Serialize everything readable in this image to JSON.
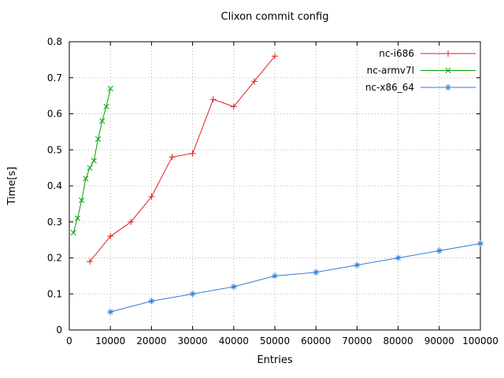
{
  "chart_data": {
    "type": "line",
    "title": "Clixon commit config",
    "xlabel": "Entries",
    "ylabel": "Time[s]",
    "xlim": [
      0,
      100000
    ],
    "ylim": [
      0,
      0.8
    ],
    "xticks": [
      0,
      10000,
      20000,
      30000,
      40000,
      50000,
      60000,
      70000,
      80000,
      90000,
      100000
    ],
    "yticks": [
      0,
      0.1,
      0.2,
      0.3,
      0.4,
      0.5,
      0.6,
      0.7,
      0.8
    ],
    "grid": true,
    "legend_position": "top-right",
    "colors": {
      "grid": "#b5b5b5",
      "border": "#000000",
      "background": "#ffffff"
    },
    "series": [
      {
        "name": "nc-i686",
        "color": "#dc2020",
        "marker": "plus",
        "x": [
          5000,
          10000,
          15000,
          20000,
          25000,
          30000,
          35000,
          40000,
          45000,
          50000
        ],
        "values": [
          0.19,
          0.26,
          0.3,
          0.37,
          0.48,
          0.49,
          0.64,
          0.62,
          0.69,
          0.76
        ]
      },
      {
        "name": "nc-armv7l",
        "color": "#00a000",
        "marker": "cross",
        "x": [
          1000,
          2000,
          3000,
          4000,
          5000,
          6000,
          7000,
          8000,
          9000,
          10000
        ],
        "values": [
          0.27,
          0.31,
          0.36,
          0.42,
          0.45,
          0.47,
          0.53,
          0.58,
          0.62,
          0.67
        ]
      },
      {
        "name": "nc-x86_64",
        "color": "#2f7ed8",
        "marker": "asterisk",
        "x": [
          10000,
          20000,
          30000,
          40000,
          50000,
          60000,
          70000,
          80000,
          90000,
          100000
        ],
        "values": [
          0.05,
          0.08,
          0.1,
          0.12,
          0.15,
          0.16,
          0.18,
          0.2,
          0.22,
          0.24
        ]
      }
    ]
  }
}
